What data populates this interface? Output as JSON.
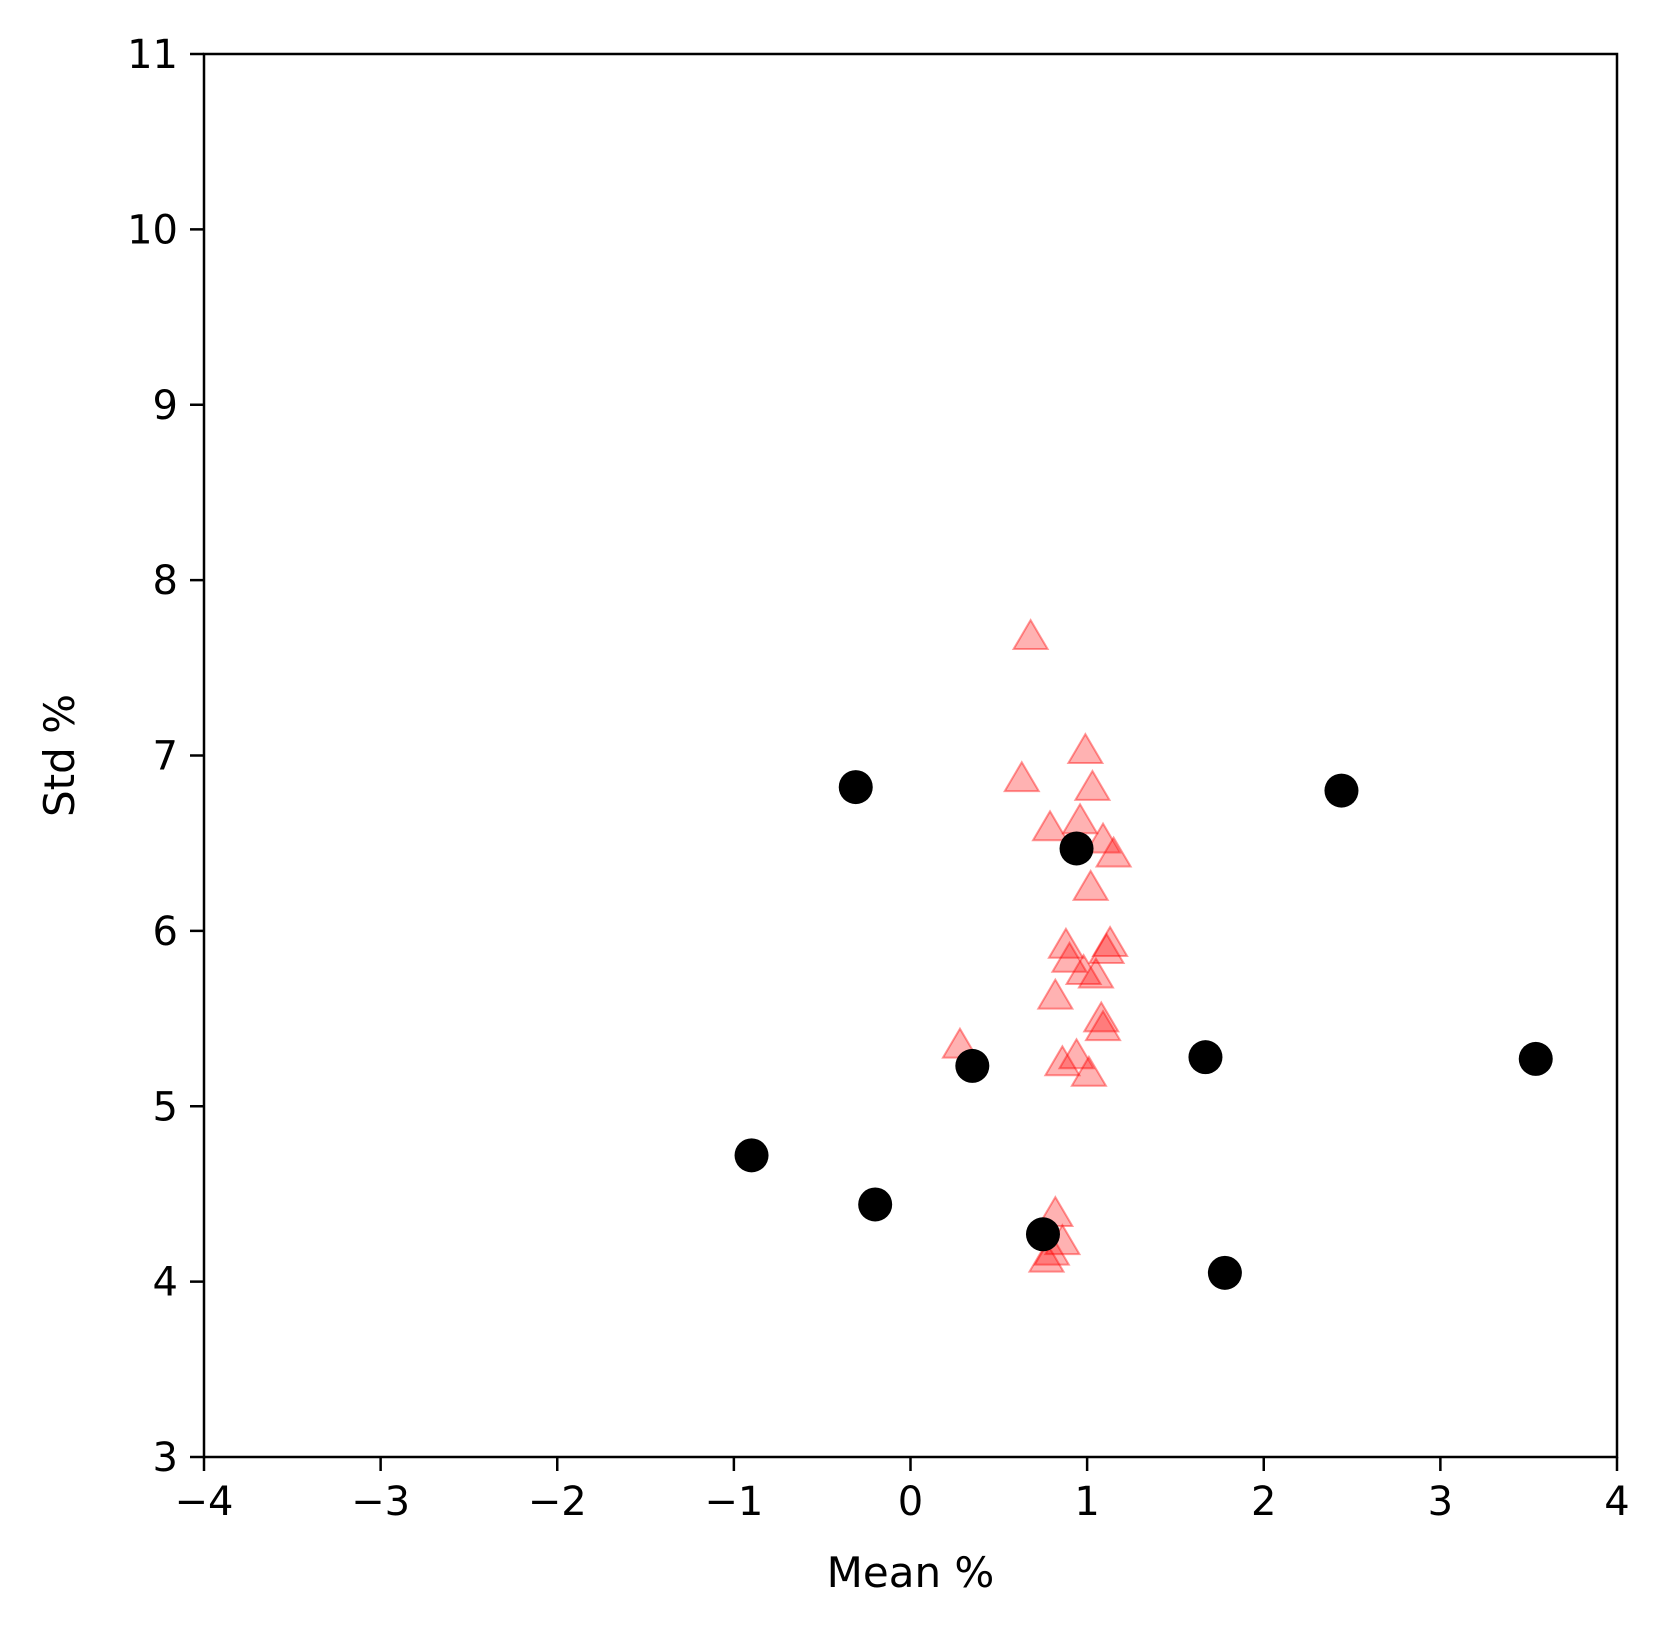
{
  "chart_data": {
    "type": "scatter",
    "xlabel": "Mean %",
    "ylabel": "Std %",
    "xlim": [
      -4,
      4
    ],
    "ylim": [
      3,
      11
    ],
    "x_ticks": [
      -4,
      -3,
      -2,
      -1,
      0,
      1,
      2,
      3,
      4
    ],
    "y_ticks": [
      3,
      4,
      5,
      6,
      7,
      8,
      9,
      10,
      11
    ],
    "x_tick_labels": [
      "−4",
      "−3",
      "−2",
      "−1",
      "0",
      "1",
      "2",
      "3",
      "4"
    ],
    "y_tick_labels": [
      "3",
      "4",
      "5",
      "6",
      "7",
      "8",
      "9",
      "10",
      "11"
    ],
    "grid": false,
    "series": [
      {
        "marker": "triangle",
        "color": "#ff0000",
        "alpha": 0.3,
        "points": [
          {
            "x": 0.68,
            "y": 7.67
          },
          {
            "x": 0.99,
            "y": 7.02
          },
          {
            "x": 0.63,
            "y": 6.86
          },
          {
            "x": 1.03,
            "y": 6.81
          },
          {
            "x": 0.96,
            "y": 6.62
          },
          {
            "x": 0.79,
            "y": 6.58
          },
          {
            "x": 1.09,
            "y": 6.51
          },
          {
            "x": 1.15,
            "y": 6.43
          },
          {
            "x": 1.02,
            "y": 6.24
          },
          {
            "x": 1.13,
            "y": 5.92
          },
          {
            "x": 0.88,
            "y": 5.91
          },
          {
            "x": 1.11,
            "y": 5.88
          },
          {
            "x": 0.9,
            "y": 5.83
          },
          {
            "x": 0.98,
            "y": 5.76
          },
          {
            "x": 1.05,
            "y": 5.74
          },
          {
            "x": 0.82,
            "y": 5.62
          },
          {
            "x": 1.08,
            "y": 5.49
          },
          {
            "x": 1.09,
            "y": 5.44
          },
          {
            "x": 0.28,
            "y": 5.34
          },
          {
            "x": 0.94,
            "y": 5.28
          },
          {
            "x": 0.86,
            "y": 5.24
          },
          {
            "x": 1.01,
            "y": 5.18
          },
          {
            "x": 0.82,
            "y": 4.38
          },
          {
            "x": 0.86,
            "y": 4.22
          },
          {
            "x": 0.8,
            "y": 4.16
          },
          {
            "x": 0.77,
            "y": 4.12
          }
        ]
      },
      {
        "marker": "circle",
        "color": "#000000",
        "alpha": 1,
        "points": [
          {
            "x": -0.31,
            "y": 6.82
          },
          {
            "x": 2.44,
            "y": 6.8
          },
          {
            "x": 0.94,
            "y": 6.47
          },
          {
            "x": 0.35,
            "y": 5.23
          },
          {
            "x": 1.67,
            "y": 5.28
          },
          {
            "x": 3.54,
            "y": 5.27
          },
          {
            "x": -0.9,
            "y": 4.72
          },
          {
            "x": -0.2,
            "y": 4.44
          },
          {
            "x": 0.75,
            "y": 4.27
          },
          {
            "x": 1.78,
            "y": 4.05
          }
        ]
      }
    ]
  }
}
